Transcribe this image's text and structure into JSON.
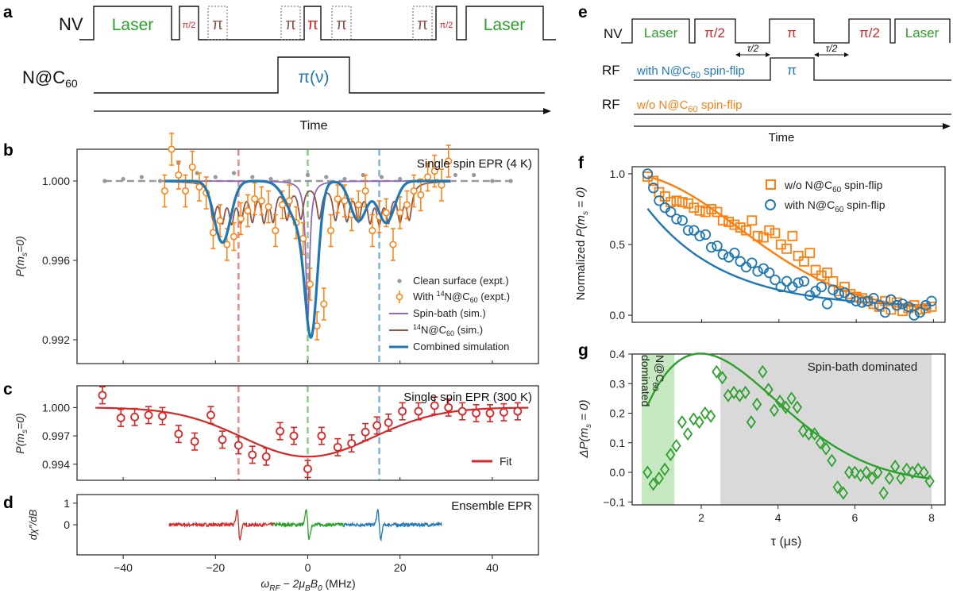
{
  "colors": {
    "green": "#2ca02c",
    "orange": "#ff7f0e",
    "blue": "#1f77b4",
    "red": "#d62728",
    "brown": "#8c564b",
    "purple": "#9467bd",
    "gray": "#999999",
    "lightgreen": "#c6e8c0",
    "lightgray": "#d9d9d9"
  },
  "panel_labels": {
    "a": "a",
    "b": "b",
    "c": "c",
    "d": "d",
    "e": "e",
    "f": "f",
    "g": "g"
  },
  "panel_a": {
    "nv_label": "NV",
    "nc60_label": "N@C",
    "nc60_sub": "60",
    "laser_left": "Laser",
    "laser_right": "Laser",
    "pi_half": "π/2",
    "pi": "π",
    "pi_nu": "π(ν)",
    "time": "Time"
  },
  "panel_e": {
    "nv_label": "NV",
    "rf_label": "RF",
    "laser_left": "Laser",
    "laser_right": "Laser",
    "pi_half_1": "π/2",
    "pi": "π",
    "pi_half_2": "π/2",
    "tau_half_1": "τ/2",
    "tau_half_2": "τ/2",
    "rf1_text_a": "with N@C",
    "rf1_text_sub": "60",
    "rf1_text_b": " spin-flip",
    "rf1_pi": "π",
    "rf2_text_a": "w/o N@C",
    "rf2_text_sub": "60",
    "rf2_text_b": " spin-flip",
    "time": "Time"
  },
  "chart_data": [
    {
      "id": "b",
      "type": "line",
      "title": "Single spin EPR (4 K)",
      "ylabel_a": "P(m",
      "ylabel_sub": "s",
      "ylabel_b": "=0)",
      "xlim": [
        -50,
        50
      ],
      "ylim": [
        0.9908,
        1.0016
      ],
      "yticks": [
        0.992,
        0.996,
        1.0
      ],
      "ytick_labels": [
        "0.992",
        "0.996",
        "1.000"
      ],
      "vlines": [
        -15,
        0,
        15.5
      ],
      "legend": {
        "clean": "Clean surface (expt.)",
        "with_a": "With ",
        "with_sup": "14",
        "with_b": "N@C",
        "with_sub": "60",
        "with_c": " (expt.)",
        "spinbath": "Spin-bath (sim.)",
        "nc60_sup": "14",
        "nc60_a": "N@C",
        "nc60_sub": "60",
        "nc60_b": " (sim.)",
        "combined": "Combined simulation"
      },
      "clean_surface": {
        "x": [
          -44,
          -40,
          -36,
          -32,
          -28,
          -24,
          -20,
          -16,
          -12,
          -8,
          -4,
          0,
          4,
          8,
          12,
          16,
          20,
          24,
          28,
          32,
          36,
          40,
          44
        ],
        "y": [
          1.0,
          1.0001,
          1.0002,
          1.0,
          1.0009,
          1.0004,
          1.0002,
          1.0004,
          1.0002,
          1.0001,
          1.0,
          1.0003,
          1.0002,
          1.0001,
          1.0003,
          1.0002,
          1.0001,
          1.0,
          1.0,
          1.0003,
          1.0003,
          1.0,
          1.0
        ]
      },
      "expt": {
        "x": [
          -31,
          -29.5,
          -28,
          -26.5,
          -25,
          -23.5,
          -22,
          -20.5,
          -19,
          -17.5,
          -16,
          -14.5,
          -13,
          -11.5,
          -10,
          -8.5,
          -7,
          -5.5,
          -4,
          -2.5,
          -1,
          0.5,
          2,
          3.5,
          5,
          6.5,
          8,
          9.5,
          11,
          12.5,
          14,
          15.5,
          17,
          18.5,
          20,
          21.5,
          23,
          24.5,
          26,
          27.5,
          29,
          30.5
        ],
        "y": [
          0.9995,
          1.0016,
          1.0003,
          0.9995,
          1.0007,
          0.9997,
          0.9994,
          0.9974,
          0.998,
          0.9968,
          0.9972,
          0.9981,
          0.9985,
          0.9991,
          0.999,
          0.9987,
          0.9975,
          0.9988,
          0.999,
          0.9979,
          0.9971,
          0.9948,
          0.9927,
          0.9938,
          0.9975,
          0.9991,
          0.999,
          0.9983,
          0.9988,
          0.9995,
          0.9975,
          0.9982,
          0.9984,
          0.9968,
          0.9984,
          0.9988,
          0.9995,
          0.9993,
          1.0002,
          1.0005,
          0.9998,
          1.001
        ],
        "err": [
          0.0008,
          0.0008,
          0.0007,
          0.0008,
          0.0008,
          0.0007,
          0.0008,
          0.0008,
          0.0008,
          0.0008,
          0.0007,
          0.0008,
          0.0008,
          0.0008,
          0.0007,
          0.0008,
          0.0008,
          0.0007,
          0.0008,
          0.0008,
          0.0008,
          0.0008,
          0.0007,
          0.0008,
          0.0008,
          0.0007,
          0.0008,
          0.0008,
          0.0007,
          0.0008,
          0.0008,
          0.0008,
          0.0007,
          0.0008,
          0.0008,
          0.0007,
          0.0008,
          0.0008,
          0.0007,
          0.0008,
          0.0008,
          0.0008
        ]
      },
      "spinbath": {
        "center": 0,
        "amplitude": 0.007,
        "width": 0.5,
        "range": [
          -31,
          31
        ]
      },
      "nc60_sim": {
        "centers": [
          -20.5,
          -18.5,
          -16.5,
          -14.5,
          -12,
          -9.5,
          -7.5,
          -4.5,
          -1.5,
          2.5,
          6,
          8.5,
          11,
          13.5,
          15.5,
          17.5,
          20,
          22
        ],
        "depth": 0.0017,
        "width": 0.7,
        "range": [
          -31,
          31
        ]
      },
      "combined": {
        "dips": [
          {
            "center": -18.5,
            "amplitude": 0.0031,
            "width": 2.5
          },
          {
            "center": 0.8,
            "amplitude": 0.0068,
            "width": 1.9
          },
          {
            "center": -2.0,
            "amplitude": 0.002,
            "width": 3.5
          },
          {
            "center": 11,
            "amplitude": 0.002,
            "width": 2.5
          },
          {
            "center": 17,
            "amplitude": 0.0021,
            "width": 2.6
          }
        ],
        "range": [
          -31,
          31
        ]
      }
    },
    {
      "id": "c",
      "type": "scatter",
      "title": "Single spin EPR (300 K)",
      "ylabel_a": "P(m",
      "ylabel_sub": "s",
      "ylabel_b": "=0)",
      "xlim": [
        -50,
        50
      ],
      "ylim": [
        0.9923,
        1.0023
      ],
      "yticks": [
        0.994,
        0.997,
        1.0
      ],
      "ytick_labels": [
        "0.994",
        "0.997",
        "1.000"
      ],
      "vlines": [
        -15,
        0,
        15.5
      ],
      "legend_fit": "Fit",
      "expt": {
        "x": [
          -44.5,
          -40.5,
          -37.5,
          -34.5,
          -31.5,
          -28,
          -24.5,
          -21,
          -18.5,
          -15,
          -12,
          -9,
          -6,
          -3,
          0,
          3,
          6.5,
          9.5,
          12.5,
          15,
          17.5,
          20.5,
          24,
          27.5,
          30.5,
          33.5,
          36.5,
          39.5,
          42.5,
          45.5
        ],
        "y": [
          1.0013,
          0.9989,
          0.999,
          0.9992,
          0.9991,
          0.9972,
          0.9964,
          0.9992,
          0.9966,
          0.996,
          0.995,
          0.9948,
          0.9975,
          0.997,
          0.9935,
          0.997,
          0.9958,
          0.9962,
          0.9974,
          0.9981,
          0.9984,
          0.9996,
          0.9996,
          1.0002,
          1.0,
          0.9996,
          0.9994,
          0.9994,
          0.9995,
          0.9996
        ],
        "err": [
          0.0009,
          0.0009,
          0.0009,
          0.0009,
          0.0009,
          0.0009,
          0.0009,
          0.0009,
          0.0009,
          0.0009,
          0.0009,
          0.0009,
          0.0009,
          0.0009,
          0.0009,
          0.0009,
          0.0009,
          0.0009,
          0.0009,
          0.0009,
          0.0009,
          0.0009,
          0.0009,
          0.0009,
          0.0009,
          0.0009,
          0.0009,
          0.0009,
          0.0009,
          0.0009
        ]
      },
      "fit": {
        "center": 0,
        "amplitude": 0.0052,
        "width": 20,
        "baseline": 1.0,
        "range": [
          -46,
          48
        ]
      }
    },
    {
      "id": "d",
      "type": "line",
      "title": "Ensemble EPR",
      "ylabel": "dχ″/dB",
      "xlim": [
        -50,
        50
      ],
      "ylim": [
        -1.4,
        1.4
      ],
      "yticks": [
        0,
        1
      ],
      "ytick_labels": [
        "0",
        "1"
      ],
      "xticks": [
        -40,
        -20,
        0,
        20,
        40
      ],
      "xtick_labels": [
        "−40",
        "−20",
        "0",
        "20",
        "40"
      ],
      "xlabel": "ω_RF − 2μ_B B_0 (MHz)",
      "xlabel_parts": {
        "w": "ω",
        "rf": "RF",
        "mid": " − 2μ",
        "b": "B",
        "b0": "B",
        "zero": "0",
        "unit": " (MHz)"
      },
      "lines": [
        {
          "name": "red",
          "range": [
            -30,
            -7.5
          ],
          "center": -15
        },
        {
          "name": "green",
          "range": [
            -7.5,
            7.8
          ],
          "center": 0
        },
        {
          "name": "blue",
          "range": [
            7.8,
            29
          ],
          "center": 15.5
        }
      ],
      "amplitude": 1.0
    },
    {
      "id": "f",
      "type": "scatter",
      "ylabel_a": "Normalized ",
      "ylabel_b": "P(m",
      "ylabel_sub": "s",
      "ylabel_c": " = 0)",
      "xlim": [
        0.2,
        8.3
      ],
      "ylim": [
        -0.05,
        1.05
      ],
      "yticks": [
        0.0,
        0.5,
        1.0
      ],
      "ytick_labels": [
        "0.0",
        "0.5",
        "1.0"
      ],
      "legend": {
        "wo_a": "w/o N@C",
        "wo_sub": "60",
        "wo_b": " spin-flip",
        "with_a": "with N@C",
        "with_sub": "60",
        "with_b": " spin-flip"
      },
      "series_wo": {
        "x": [
          0.6,
          0.75,
          0.9,
          1.05,
          1.2,
          1.35,
          1.5,
          1.65,
          1.8,
          1.95,
          2.1,
          2.25,
          2.4,
          2.55,
          2.7,
          2.85,
          3.0,
          3.15,
          3.3,
          3.45,
          3.6,
          3.75,
          3.9,
          4.05,
          4.2,
          4.35,
          4.5,
          4.65,
          4.8,
          4.95,
          5.1,
          5.25,
          5.4,
          5.55,
          5.7,
          5.85,
          6.0,
          6.15,
          6.3,
          6.45,
          6.6,
          6.75,
          6.9,
          7.05,
          7.2,
          7.35,
          7.5,
          7.65,
          7.8,
          7.95
        ],
        "y": [
          0.98,
          0.95,
          0.87,
          0.84,
          0.8,
          0.81,
          0.8,
          0.79,
          0.76,
          0.74,
          0.73,
          0.75,
          0.73,
          0.67,
          0.66,
          0.64,
          0.62,
          0.6,
          0.67,
          0.56,
          0.55,
          0.6,
          0.58,
          0.5,
          0.47,
          0.56,
          0.42,
          0.38,
          0.44,
          0.32,
          0.28,
          0.3,
          0.24,
          0.17,
          0.2,
          0.15,
          0.13,
          0.12,
          0.1,
          0.08,
          0.06,
          0.1,
          0.04,
          0.09,
          0.03,
          0.05,
          0.07,
          0.04,
          0.05,
          0.06
        ]
      },
      "series_with": {
        "x": [
          0.6,
          0.75,
          0.9,
          1.05,
          1.2,
          1.35,
          1.5,
          1.65,
          1.8,
          1.95,
          2.1,
          2.25,
          2.4,
          2.55,
          2.7,
          2.85,
          3.0,
          3.15,
          3.3,
          3.45,
          3.6,
          3.75,
          3.9,
          4.05,
          4.2,
          4.35,
          4.5,
          4.65,
          4.8,
          4.95,
          5.1,
          5.25,
          5.4,
          5.55,
          5.7,
          5.85,
          6.0,
          6.15,
          6.3,
          6.45,
          6.6,
          6.75,
          6.9,
          7.05,
          7.2,
          7.35,
          7.5,
          7.65,
          7.8,
          7.95
        ],
        "y": [
          1.0,
          0.9,
          0.81,
          0.76,
          0.73,
          0.68,
          0.67,
          0.6,
          0.6,
          0.56,
          0.57,
          0.48,
          0.49,
          0.43,
          0.41,
          0.44,
          0.38,
          0.34,
          0.37,
          0.31,
          0.33,
          0.3,
          0.25,
          0.2,
          0.24,
          0.2,
          0.23,
          0.24,
          0.14,
          0.17,
          0.2,
          0.08,
          0.18,
          0.15,
          0.16,
          0.12,
          0.1,
          0.09,
          0.1,
          0.12,
          0.07,
          0.02,
          0.11,
          0.07,
          0.08,
          0.06,
          0.0,
          0.02,
          0.07,
          0.1
        ]
      },
      "fit_wo": {
        "a": 0.98,
        "tau": 4.2,
        "n": 2.0,
        "offset": 0.02
      },
      "fit_with": {
        "a": 0.95,
        "tau": 2.0,
        "n": 1.0,
        "offset": 0.05
      }
    },
    {
      "id": "g",
      "type": "scatter",
      "ylabel_a": "ΔP(m",
      "ylabel_sub": "s",
      "ylabel_b": " = 0)",
      "xlabel": "τ (μs)",
      "xlim": [
        0.2,
        8.35
      ],
      "ylim": [
        -0.11,
        0.4
      ],
      "yticks": [
        -0.1,
        0.0,
        0.1,
        0.2,
        0.3,
        0.4
      ],
      "ytick_labels": [
        "−0.1",
        "0.0",
        "0.1",
        "0.2",
        "0.3",
        "0.4"
      ],
      "xticks": [
        2,
        4,
        6,
        8
      ],
      "xtick_labels": [
        "2",
        "4",
        "6",
        "8"
      ],
      "region_nc60": {
        "from": 0.45,
        "to": 1.3,
        "label_a": "N@C",
        "label_sub": "60",
        "label_b": "dominated"
      },
      "region_bath": {
        "from": 2.5,
        "to": 8.0,
        "label": "Spin-bath dominated"
      },
      "points": {
        "x": [
          0.6,
          0.75,
          0.9,
          1.05,
          1.2,
          1.35,
          1.5,
          1.65,
          1.8,
          1.95,
          2.1,
          2.25,
          2.4,
          2.55,
          2.7,
          2.85,
          3.0,
          3.15,
          3.3,
          3.45,
          3.6,
          3.75,
          3.9,
          4.05,
          4.2,
          4.35,
          4.5,
          4.65,
          4.8,
          4.95,
          5.1,
          5.25,
          5.4,
          5.55,
          5.7,
          5.85,
          6.0,
          6.15,
          6.3,
          6.45,
          6.6,
          6.75,
          6.9,
          7.05,
          7.2,
          7.35,
          7.5,
          7.65,
          7.8,
          7.95
        ],
        "y": [
          0.0,
          -0.04,
          -0.02,
          0.01,
          0.06,
          0.09,
          0.17,
          0.13,
          0.18,
          0.17,
          0.2,
          0.19,
          0.34,
          0.32,
          0.26,
          0.27,
          0.26,
          0.27,
          0.17,
          0.23,
          0.34,
          0.28,
          0.21,
          0.24,
          0.22,
          0.25,
          0.22,
          0.14,
          0.13,
          0.13,
          0.1,
          0.08,
          0.04,
          -0.05,
          -0.07,
          0.0,
          0.0,
          -0.01,
          0.0,
          -0.02,
          0.0,
          -0.07,
          -0.02,
          0.02,
          -0.02,
          0.01,
          0.0,
          0.01,
          0.0,
          -0.03
        ]
      },
      "fit": {
        "a": 0.98,
        "tau1": 4.2,
        "n1": 2.0,
        "off1": 0.02,
        "b": 0.95,
        "tau2": 2.0,
        "n2": 1.0,
        "off2": 0.05
      }
    }
  ]
}
